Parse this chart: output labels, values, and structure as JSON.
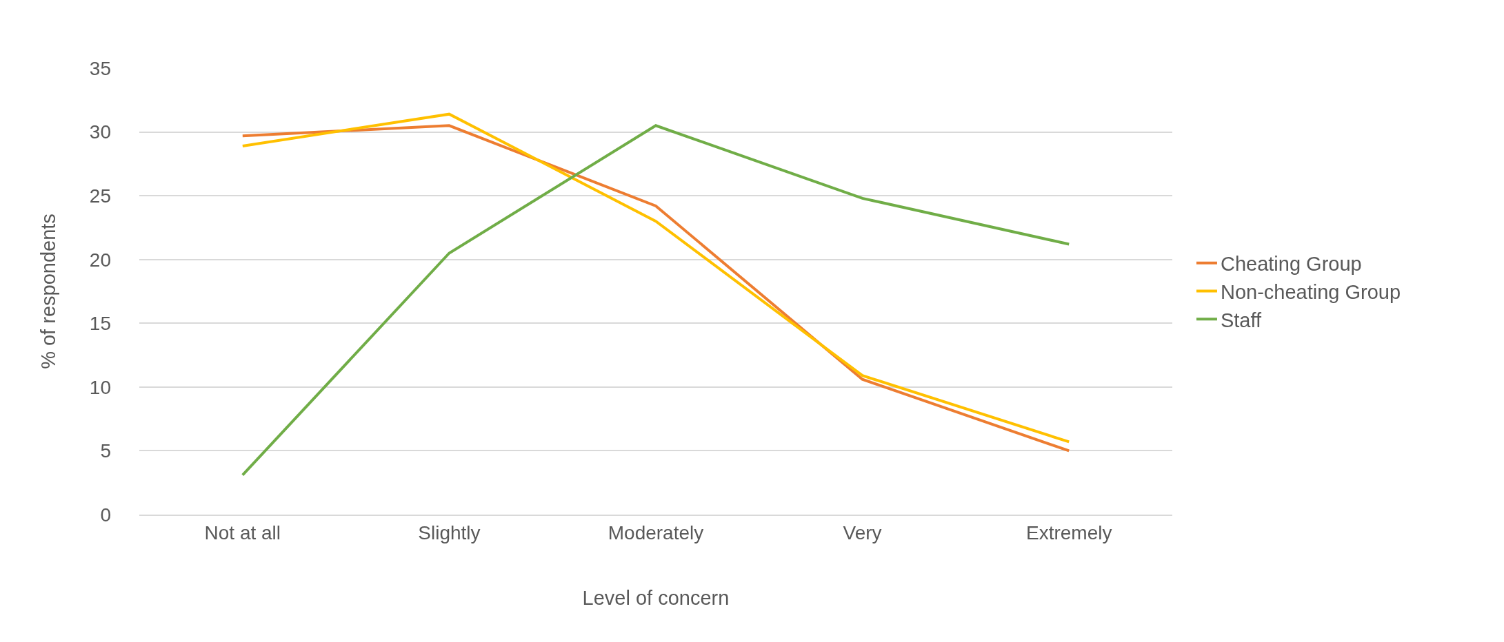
{
  "chart_data": {
    "type": "line",
    "xlabel": "Level of concern",
    "ylabel": "% of respondents",
    "categories": [
      "Not at all",
      "Slightly",
      "Moderately",
      "Very",
      "Extremely"
    ],
    "series": [
      {
        "name": "Cheating Group",
        "color": "#ed7d31",
        "values": [
          29.7,
          30.5,
          24.2,
          10.6,
          5.0
        ]
      },
      {
        "name": "Non-cheating Group",
        "color": "#ffc000",
        "values": [
          28.9,
          31.4,
          23.0,
          10.9,
          5.7
        ]
      },
      {
        "name": "Staff",
        "color": "#70ad47",
        "values": [
          3.1,
          20.5,
          30.5,
          24.8,
          21.2
        ]
      }
    ],
    "ylim": [
      0,
      35
    ],
    "yticks": [
      0,
      5,
      10,
      15,
      20,
      25,
      30,
      35
    ],
    "grid": "y",
    "legend": "right",
    "marker": "none",
    "line_style": "solid"
  }
}
